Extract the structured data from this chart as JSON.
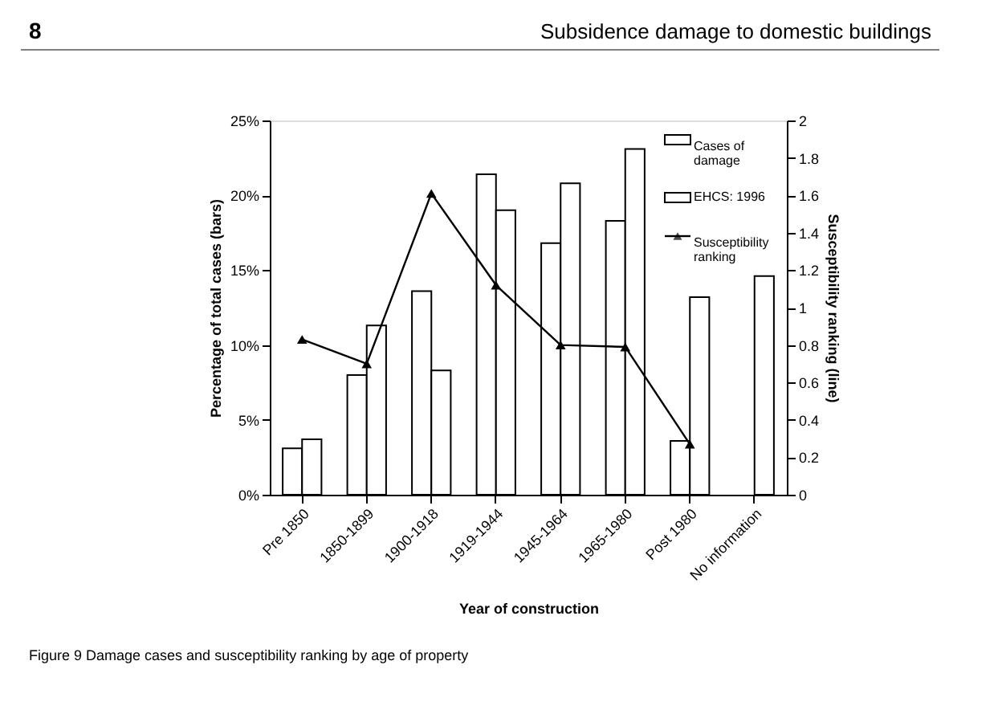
{
  "chart_data": {
    "type": "bar",
    "xlabel": "Year of construction",
    "ylabel": "Percentage of total cases (bars)",
    "y2label": "Susceptibility ranking (line)",
    "annotations": [
      "8",
      "Subsidence damage to domestic buildings",
      "Figure 9 Damage cases and susceptibility ranking by age of property"
    ],
    "categories": [
      "Pre 1850",
      "1850-1899",
      "1900-1918",
      "1919-1944",
      "1945-1964",
      "1965-1980",
      "Post 1980",
      "No information"
    ],
    "series": [
      {
        "name": "Cases of damage",
        "color": "#ffffff",
        "values": [
          3.1,
          8.0,
          13.6,
          21.4,
          16.8,
          18.3,
          3.6,
          null
        ]
      },
      {
        "name": "EHCS: 1996",
        "color": "#ffffff",
        "values": [
          3.7,
          11.3,
          8.3,
          19.0,
          20.8,
          23.1,
          13.2,
          14.6
        ]
      },
      {
        "name": "Susceptibility ranking",
        "type": "line",
        "axis": "y2",
        "color": "#000000",
        "marker": "triangle",
        "values": [
          0.83,
          0.7,
          1.61,
          1.12,
          0.8,
          0.79,
          0.27,
          null
        ]
      }
    ],
    "ylim": [
      0,
      25
    ],
    "yticks": [
      {
        "value": 0,
        "label": "0%"
      },
      {
        "value": 5,
        "label": "5%"
      },
      {
        "value": 10,
        "label": "10%"
      },
      {
        "value": 15,
        "label": "15%"
      },
      {
        "value": 20,
        "label": "20%"
      },
      {
        "value": 25,
        "label": "25%"
      }
    ],
    "y2lim": [
      0,
      2
    ],
    "y2ticks": [
      0,
      0.2,
      0.4,
      0.6,
      0.8,
      1,
      1.2,
      1.4,
      1.6,
      1.8,
      2
    ],
    "legend": "top right",
    "grid": false
  }
}
